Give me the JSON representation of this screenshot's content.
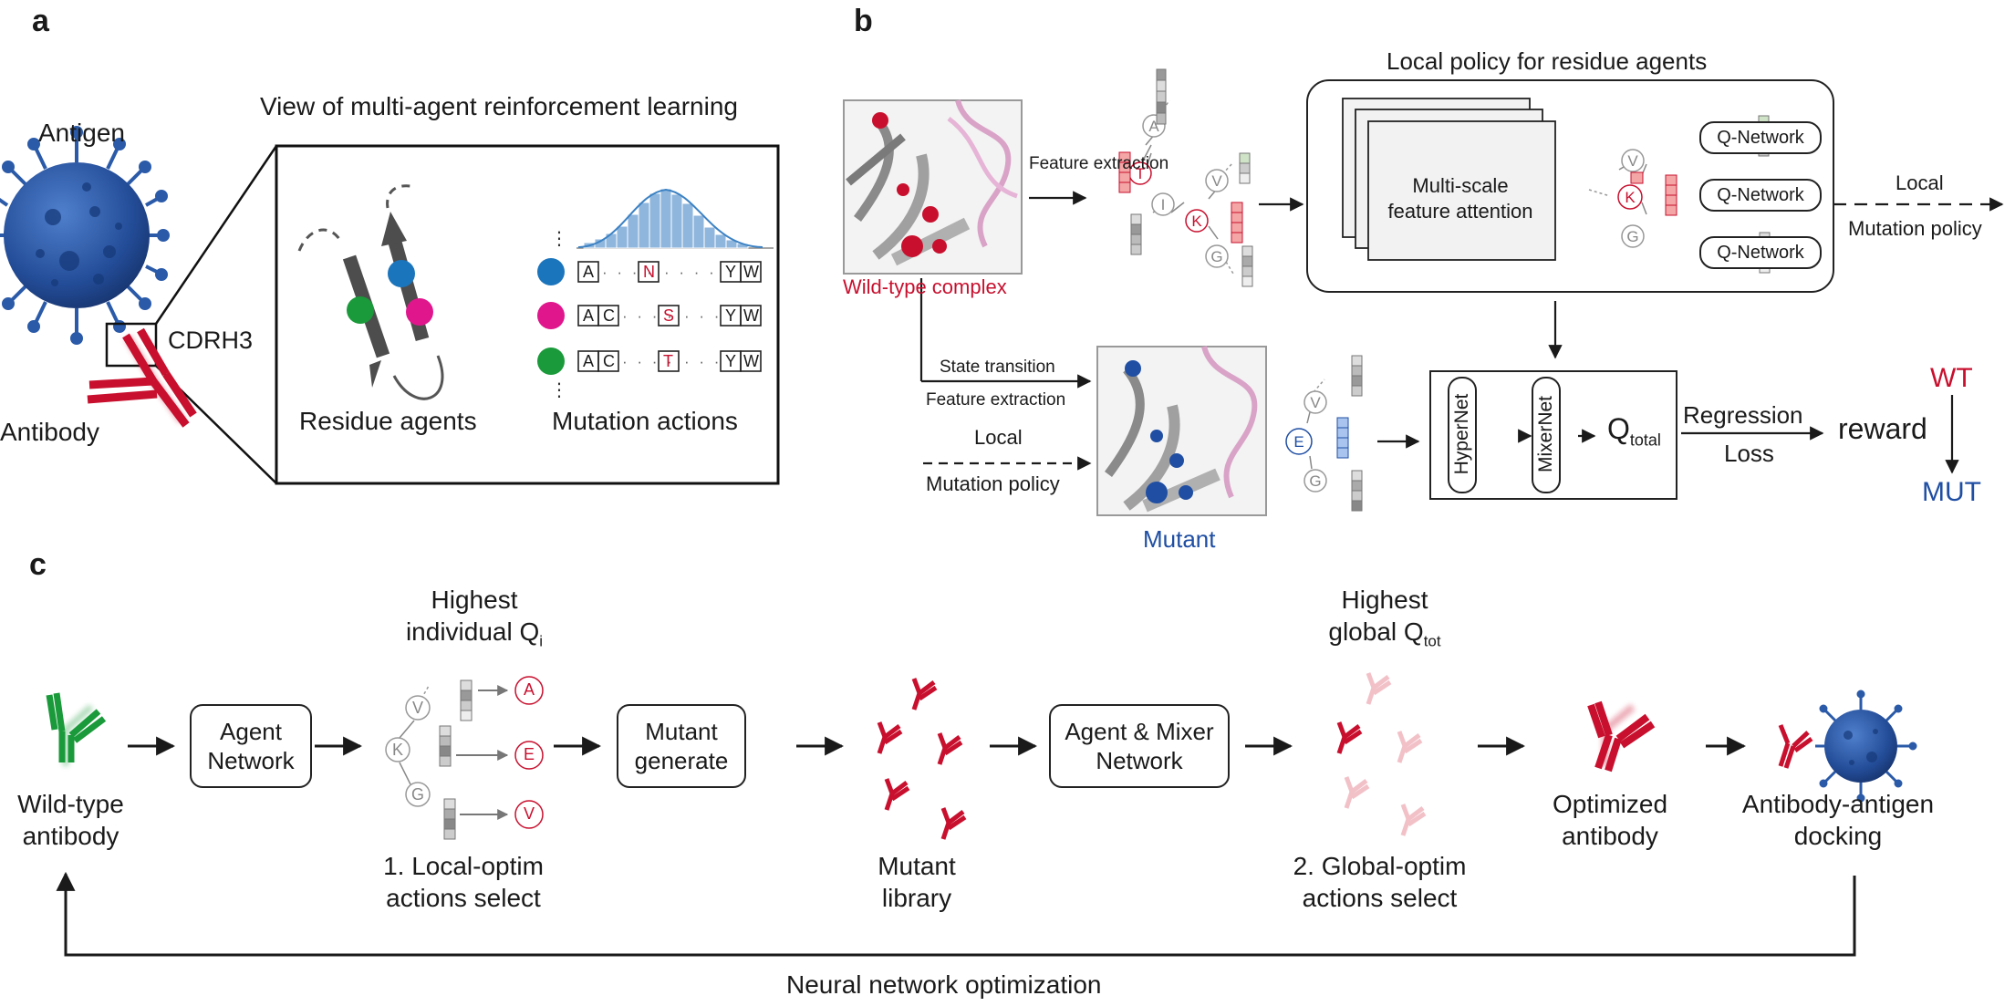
{
  "colors": {
    "red": "#c8102e",
    "blue": "#1f4ea3",
    "green": "#1a9a3a",
    "magenta": "#e0168c",
    "teal": "#1b75bc",
    "virus": "#2a5aa8"
  },
  "panel_a": {
    "label": "a",
    "title": "View of multi-agent reinforcement learning",
    "antigen": "Antigen",
    "antibody": "Antibody",
    "cdrh3": "CDRH3",
    "residue_agents": "Residue agents",
    "mutation_actions": "Mutation actions",
    "rows": [
      {
        "cells": [
          "A",
          "N",
          "Y",
          "W"
        ],
        "mutated": "N"
      },
      {
        "cells": [
          "A",
          "C",
          "S",
          "Y",
          "W"
        ],
        "mutated": "S"
      },
      {
        "cells": [
          "A",
          "C",
          "T",
          "Y",
          "W"
        ],
        "mutated": "T"
      }
    ]
  },
  "panel_b": {
    "label": "b",
    "local_policy_title": "Local policy for residue agents",
    "wild_type_complex": "Wild-type complex",
    "mutant": "Mutant",
    "feature_extraction": "Feature extraction",
    "state_transition": "State transition",
    "feature_extraction_2": "Feature extraction",
    "local_1": "Local",
    "mutation_policy_1": "Mutation policy",
    "local_2": "Local",
    "mutation_policy_2": "Mutation policy",
    "attention_line1": "Multi-scale",
    "attention_line2": "feature attention",
    "q_networks": [
      "Q-Network",
      "Q-Network",
      "Q-Network"
    ],
    "hypernet": "HyperNet",
    "mixernet": "MixerNet",
    "q_total_main": "Q",
    "q_total_sub": "total",
    "regression": "Regression",
    "loss": "Loss",
    "reward": "reward",
    "wt": "WT",
    "mut": "MUT",
    "residues_top": [
      "A",
      "T",
      "I",
      "V",
      "K",
      "G"
    ],
    "residues_right": [
      "V",
      "K",
      "G"
    ],
    "residues_mutant": [
      "V",
      "E",
      "G"
    ]
  },
  "panel_c": {
    "label": "c",
    "wild_type_antibody_1": "Wild-type",
    "wild_type_antibody_2": "antibody",
    "agent_network_1": "Agent",
    "agent_network_2": "Network",
    "highest_1": "Highest",
    "individual_q_main": "individual Q",
    "individual_q_sub": "i",
    "residues": [
      "V",
      "K",
      "G"
    ],
    "actions": [
      "A",
      "E",
      "V"
    ],
    "local_optim_1": "1. Local-optim",
    "local_optim_2": "actions select",
    "mutant_generate_1": "Mutant",
    "mutant_generate_2": "generate",
    "mutant_library_1": "Mutant",
    "mutant_library_2": "library",
    "agent_mixer_1": "Agent & Mixer",
    "agent_mixer_2": "Network",
    "highest_2": "Highest",
    "global_q_main": "global Q",
    "global_q_sub": "tot",
    "global_optim_1": "2. Global-optim",
    "global_optim_2": "actions select",
    "optimized_1": "Optimized",
    "optimized_2": "antibody",
    "docking_1": "Antibody-antigen",
    "docking_2": "docking",
    "nn_optimization": "Neural network optimization"
  }
}
